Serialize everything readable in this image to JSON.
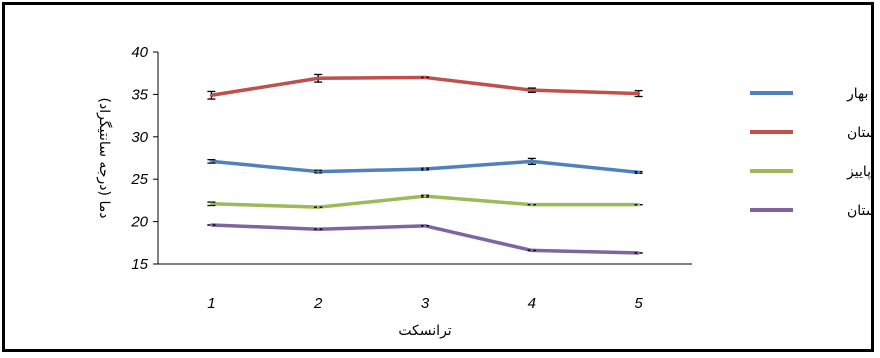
{
  "chart_data": {
    "type": "line",
    "xlabel": "ترانسکت",
    "ylabel": "دما (درجه سانتیگراد)",
    "categories": [
      "1",
      "2",
      "3",
      "4",
      "5"
    ],
    "ylim": [
      15,
      40
    ],
    "yticks": [
      "15",
      "20",
      "25",
      "30",
      "35",
      "40"
    ],
    "grid": false,
    "legend_position": "right",
    "error_bars": true,
    "series": [
      {
        "name": "بهار",
        "color": "#4F81BD",
        "values": [
          27.1,
          25.9,
          26.2,
          27.1,
          25.8
        ],
        "errors": [
          0.2,
          0.15,
          0.1,
          0.35,
          0.1
        ]
      },
      {
        "name": "تابستان",
        "color": "#C0504D",
        "values": [
          34.9,
          36.9,
          37.0,
          35.5,
          35.1
        ],
        "errors": [
          0.45,
          0.45,
          0.0,
          0.25,
          0.35
        ]
      },
      {
        "name": "پاییز",
        "color": "#9BBB59",
        "values": [
          22.1,
          21.7,
          23.0,
          22.0,
          22.0
        ],
        "errors": [
          0.2,
          0.0,
          0.1,
          0.0,
          0.0
        ]
      },
      {
        "name": "زمستان",
        "color": "#8064A2",
        "values": [
          19.6,
          19.1,
          19.5,
          16.6,
          16.3
        ],
        "errors": [
          0.0,
          0.0,
          0.0,
          0.0,
          0.0
        ]
      }
    ]
  }
}
